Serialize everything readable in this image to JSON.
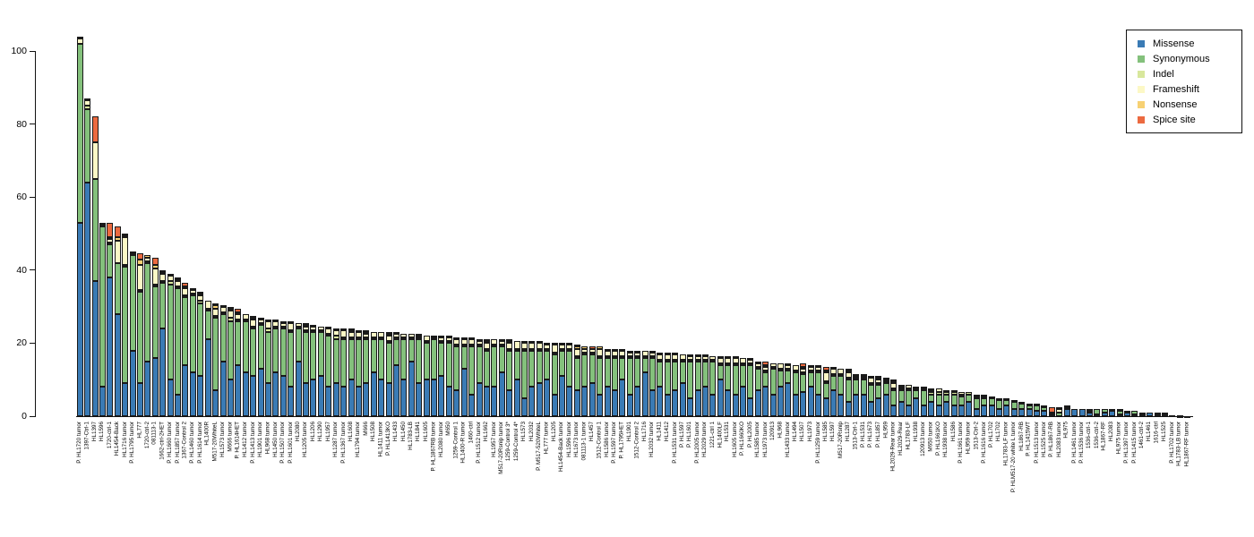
{
  "chart_data": {
    "type": "bar",
    "stacked": true,
    "title": "",
    "xlabel": "",
    "ylabel": "",
    "ylim": [
      0,
      104
    ],
    "y_ticks": [
      0,
      20,
      40,
      60,
      80,
      100
    ],
    "grid": false,
    "legend_position": "top-right",
    "categories": [
      "P. HL1720 tumor",
      "1397-Ctrl-1",
      "HL1397",
      "HL1596",
      "1720-ctrl-1",
      "HL1454-Back",
      "HL1716 tumor",
      "P. HL1795 tumor",
      "HL777",
      "1720-ctrl-2",
      "081113-1",
      "1662-ctrl-2HET",
      "P. HL1660 tumor",
      "P. HL1857 tumor",
      "1367-Control 2",
      "P. HL1460 tumor",
      "P. HL1614 tumor",
      "HL1400R",
      "M517-20WhiteL",
      "HL1573 tumor",
      "M666 tumor",
      "P. HL1614HET",
      "HL1412 tumor",
      "P. HL1413 tumor",
      "HL1901 tumor",
      "HL968 tumor",
      "HL1450 tumor",
      "P. HL1507 tumor",
      "P. HL1601 tumor",
      "HL2080",
      "HL1205 tumor",
      "HL1206",
      "HL1290",
      "HL1957",
      "HL1287 tumor",
      "P. HL1367 tumor",
      "HL1608",
      "HL1794 tumor",
      "M666",
      "HL1508",
      "HL1411 tumor",
      "P. HL1413KO",
      "HL1433",
      "HL1450",
      "HL1783-LB",
      "HL1841",
      "HL1605",
      "P. HL1867RB tumor",
      "HL2080 tumor",
      "M650",
      "1259-Control 1",
      "HL1400-R tumor",
      "1460-ctrl",
      "P. HL1512 tumor",
      "HL1662",
      "HL1957 tumor",
      "M517-20Rsnip tumor",
      "1259-Control 3*",
      "1259-Control 4*",
      "HL1573",
      "HL2032",
      "P. M517-520WhiteL",
      "HL777 tumor",
      "HL1205",
      "HL1454-Back tumor",
      "HL1596 tumor",
      "HL1673 tumor",
      "081113-1 tumor",
      "HL1457",
      "1512-Control 1",
      "HL1586 tumor",
      "P. HL1597 tumor",
      "P. HL1795HET",
      "HL1901",
      "1512-Control 2",
      "HL1716",
      "HL2032 tumor",
      "HL1411",
      "HL1412",
      "P. HL1531 tumor",
      "P. HL1597",
      "P. HL1601",
      "P. HL2005 tumor",
      "HL2029 tumor",
      "1221-ctrl 1",
      "HL1400LF",
      "HL1531",
      "HL1605 tumor",
      "P. HL1660KO",
      "P. HL2005",
      "HL1585 tumor",
      "HL1973 tumor",
      "120913",
      "HL968",
      "HL1433 tumor",
      "HL1494",
      "HL1507",
      "HL1973",
      "P. HL1259 tumor",
      "HL1585",
      "HL1597",
      "M517-20Rsnip",
      "HL1287",
      "1513-Ctrl-1",
      "P. HL1531",
      "P. HL1673",
      "P. HL1857",
      "HL959",
      "HL2029-Rear tumor",
      "HL2029-Rear",
      "HL1783-LF",
      "HL1938",
      "120913 tumor",
      "M650 tumor",
      "P. HL1661KO",
      "HL1938 tumor",
      "HL1586",
      "P. HL1661 tumor",
      "HL959 tumor",
      "1513-Ctrl-2",
      "P. HL1616 tumor",
      "P. HL1702",
      "HL1702",
      "HL1783-LF tumor",
      "P. HLM517-20 white L tumor",
      "HL1867-RB",
      "P. HL1415WT",
      "P. HL1513 tumor",
      "HL1525 tumor",
      "P. HL1867-RB",
      "HL2083 tumor",
      "HL975",
      "P. HL1461 tumor",
      "P. HL1536 tumor",
      "1536-ctrl-1",
      "1536-ctrl-2",
      "HL1867-RF",
      "HL2083",
      "HL975 tumor",
      "P. HL1397 tumor",
      "P. HL1415 tumor",
      "1461-ctrl-2",
      "HL1461",
      "1616-ctrl",
      "HL1525",
      "P. HL1702 tumor",
      "HL1783-LB tumor",
      "HL1867-RF tumor"
    ],
    "series": [
      {
        "name": "Missense",
        "color": "#3a7bb5",
        "values": [
          53,
          64,
          37,
          8,
          38,
          28,
          9,
          18,
          9,
          15,
          16,
          24,
          10,
          6,
          14,
          12,
          11,
          21,
          7,
          15,
          10,
          14,
          12,
          11,
          13,
          9,
          12,
          11,
          8,
          15,
          9,
          10,
          11,
          8,
          9,
          8,
          10,
          8,
          9,
          12,
          10,
          9,
          14,
          10,
          15,
          9,
          10,
          10,
          11,
          8,
          7,
          13,
          6,
          9,
          8,
          8,
          12,
          7,
          10,
          5,
          8,
          9,
          10,
          6,
          11,
          8,
          7,
          8,
          9,
          6,
          8,
          7,
          10,
          6,
          8,
          12,
          7,
          8,
          6,
          7,
          9,
          5,
          7,
          8,
          6,
          10,
          7,
          6,
          8,
          5,
          7,
          8,
          6,
          8,
          9,
          6,
          6.5,
          8,
          6,
          5,
          7,
          6,
          4,
          6,
          6,
          4,
          5,
          6,
          3,
          4,
          3,
          5,
          3,
          4,
          3,
          4,
          3,
          3,
          4,
          2,
          3,
          3,
          2,
          3,
          2,
          2,
          2,
          1.5,
          1.5,
          0,
          0,
          2,
          2,
          2,
          1,
          0.5,
          1,
          1.5,
          0.5,
          1,
          0.5,
          0.5,
          1,
          0.5,
          0.5,
          0.2,
          0.1,
          0.1
        ]
      },
      {
        "name": "Synonymous",
        "color": "#84c17c",
        "values": [
          49,
          20,
          28,
          44,
          9,
          14,
          32,
          26,
          25,
          27,
          19.5,
          12.5,
          26,
          29,
          18.5,
          21,
          20,
          8,
          20,
          13,
          16,
          12,
          14,
          13,
          12,
          14,
          12,
          13,
          15,
          9,
          14,
          13,
          12,
          14,
          12,
          13,
          11,
          13,
          12,
          9,
          11,
          11,
          7,
          11,
          6,
          12,
          10,
          11,
          9,
          12,
          12,
          6,
          13,
          10,
          10,
          11,
          7,
          11,
          8,
          13,
          10,
          9,
          8,
          11,
          7,
          10,
          9,
          9,
          8,
          10,
          8,
          9,
          6,
          10,
          8,
          4,
          9,
          7,
          9,
          8,
          6,
          10,
          8,
          7,
          9,
          4,
          7,
          8,
          6,
          9,
          6,
          4,
          7,
          4.5,
          3.5,
          6,
          5,
          4,
          6,
          4,
          4,
          5,
          6,
          4,
          4,
          4.5,
          3.5,
          3,
          4,
          3,
          4,
          2,
          4,
          2,
          3,
          2,
          3,
          2.5,
          2,
          3,
          2,
          2,
          2.5,
          1.5,
          2,
          1.5,
          1,
          1.5,
          1,
          0,
          1,
          0.5,
          0,
          0,
          0.5,
          1.5,
          1,
          0.5,
          1,
          0.5,
          1,
          0.5,
          0,
          0.5,
          0.5,
          0,
          0.1,
          0
        ]
      },
      {
        "name": "Indel",
        "color": "#d8e79c",
        "values": [
          0,
          1,
          0,
          0.5,
          0.5,
          0,
          0.5,
          0.5,
          0.5,
          0.5,
          0.5,
          0.5,
          1,
          0.5,
          0.5,
          0.5,
          0.5,
          0.5,
          0.5,
          0.5,
          1,
          0.5,
          0.5,
          0.5,
          0.5,
          1,
          0.5,
          0.5,
          0.5,
          0.5,
          0.5,
          0.5,
          0.5,
          0.5,
          1,
          0.5,
          0.5,
          0.5,
          0.5,
          0.5,
          0.5,
          0.5,
          0.5,
          0.5,
          0.5,
          0.5,
          0.5,
          0.5,
          0.5,
          0.5,
          0.5,
          0.5,
          0.5,
          0.5,
          0.5,
          0.5,
          0.5,
          0.5,
          0.5,
          0.5,
          0.5,
          0.5,
          0.5,
          0.5,
          0.5,
          0.5,
          0.5,
          0.5,
          0.5,
          0.5,
          0.5,
          0.5,
          0.5,
          0.5,
          0.5,
          0.5,
          0.5,
          0.5,
          0.5,
          0.5,
          0.5,
          0.5,
          0.5,
          0.5,
          0.5,
          0.5,
          0.5,
          0.5,
          0.5,
          0.5,
          0.5,
          0.5,
          0.5,
          0.5,
          0.5,
          0.5,
          0.5,
          0.5,
          0.5,
          0.5,
          0.5,
          0.5,
          0.5,
          0.5,
          0.5,
          0.5,
          0.5,
          0.5,
          0.5,
          0.5,
          0.5,
          0.5,
          0.5,
          0.5,
          0.5,
          0.5,
          0.5,
          0.5,
          0.5,
          0.5,
          0.5,
          0,
          0.5,
          0,
          0.5,
          0,
          0,
          0.5,
          0,
          0,
          0,
          0.5,
          0,
          0,
          0,
          0,
          0,
          0,
          0,
          0,
          0,
          0,
          0,
          0,
          0,
          0,
          0,
          0
        ]
      },
      {
        "name": "Frameshift",
        "color": "#fcf8c6",
        "values": [
          1.5,
          1.5,
          10,
          0.5,
          1,
          6,
          7.5,
          0.5,
          7,
          1,
          4.5,
          2,
          1.5,
          1.5,
          2,
          1,
          1.5,
          2,
          2,
          1.5,
          2,
          1.5,
          1.5,
          2,
          1,
          2,
          1.5,
          1,
          2,
          1,
          1,
          1,
          1,
          1.5,
          1.5,
          2,
          1.5,
          1.5,
          1,
          1.5,
          1.5,
          1.5,
          1,
          1,
          1,
          0.5,
          1.5,
          0.5,
          1,
          1,
          1.5,
          1.5,
          1.5,
          1,
          1.5,
          1.5,
          1,
          1.5,
          2,
          1.5,
          1.5,
          1.5,
          1,
          2,
          1,
          1,
          2,
          1,
          1,
          2,
          1.5,
          1.5,
          1.5,
          1,
          1,
          1.5,
          1,
          1.5,
          1.5,
          1.5,
          1.5,
          1,
          1,
          1,
          1,
          1.5,
          1.5,
          1.5,
          1.5,
          1,
          1,
          1,
          1,
          1.5,
          1,
          1.5,
          1,
          1,
          1,
          2.5,
          1.5,
          1.5,
          1.5,
          0.5,
          0.5,
          1.5,
          1,
          0.5,
          1.5,
          0.5,
          1,
          0.5,
          0.5,
          0.5,
          1,
          0.5,
          0.5,
          0.5,
          0,
          0.5,
          0,
          0.5,
          0,
          0,
          0,
          0.5,
          0.5,
          0,
          0.5,
          0.5,
          1,
          0,
          0,
          0,
          0,
          0,
          0,
          0,
          0.5,
          0,
          0,
          0,
          0,
          0,
          0,
          0,
          0,
          0
        ]
      },
      {
        "name": "Nonsense",
        "color": "#f7d173",
        "values": [
          0.5,
          0.5,
          0,
          0,
          0.5,
          1,
          0.5,
          0,
          1.5,
          0.5,
          1,
          0.5,
          0.5,
          0.5,
          0.5,
          0.5,
          0.5,
          0,
          1,
          0.5,
          0.5,
          0.5,
          0,
          0.5,
          0.5,
          0.5,
          0,
          0.5,
          0.5,
          0,
          0.5,
          0.5,
          0,
          0.5,
          0.5,
          0.5,
          0.5,
          0,
          0.5,
          0,
          0,
          0.5,
          0.5,
          0,
          0,
          0.5,
          0,
          0,
          0.5,
          0,
          0.5,
          0.5,
          0,
          0.5,
          0.5,
          0,
          0.5,
          0.5,
          0,
          0.5,
          0,
          0.5,
          0.5,
          0.5,
          0,
          0.5,
          0.5,
          0.5,
          0,
          0.5,
          0.5,
          0,
          0.5,
          0.5,
          0.5,
          0,
          0,
          0.5,
          0,
          0.5,
          0,
          0.5,
          0.5,
          0,
          0,
          0.5,
          0.5,
          0,
          0,
          0.5,
          0.5,
          0.5,
          0,
          0,
          0,
          0,
          0.5,
          0.5,
          0,
          0.5,
          0.5,
          0,
          0.5,
          0,
          0.5,
          0.5,
          0.5,
          0.5,
          0.5,
          0.5,
          0,
          0,
          0,
          0.5,
          0,
          0,
          0,
          0,
          0,
          0,
          0.5,
          0,
          0,
          0,
          0,
          0,
          0,
          0,
          0,
          0.5,
          0.5,
          0,
          0,
          0,
          0,
          0,
          0,
          0,
          0,
          0,
          0,
          0,
          0,
          0,
          0,
          0,
          0,
          0
        ]
      },
      {
        "name": "Spice site",
        "color": "#ec6a40",
        "values": [
          0,
          0,
          7,
          0,
          4,
          3,
          0.5,
          0,
          1.5,
          0,
          2,
          0.5,
          0,
          0.5,
          1,
          0,
          0.5,
          0,
          0.5,
          0,
          0.5,
          1,
          0,
          0.5,
          0,
          0,
          0.5,
          0,
          0,
          0,
          0.5,
          0,
          0,
          0,
          0,
          0,
          0.5,
          0.5,
          0.5,
          0,
          0,
          0.5,
          0,
          0,
          0,
          0,
          0,
          0,
          0,
          0.5,
          0,
          0,
          0.5,
          0,
          0.5,
          0,
          0,
          0.5,
          0,
          0,
          0.5,
          0,
          0,
          0,
          0.5,
          0,
          0.5,
          0,
          0.5,
          0,
          0,
          0.5,
          0,
          0,
          0,
          0,
          0.5,
          0,
          0.5,
          0,
          0,
          0,
          0,
          0.5,
          0,
          0,
          0,
          0.5,
          0,
          0,
          0,
          1,
          0,
          0,
          0.5,
          0,
          1,
          0,
          0.5,
          1,
          0,
          0,
          0.5,
          0.5,
          0,
          0,
          0.5,
          0,
          0.5,
          0,
          0,
          0,
          0,
          0,
          0,
          0,
          0,
          0,
          0,
          0,
          0,
          0,
          0,
          0.5,
          0,
          0,
          0,
          0,
          0,
          1.5,
          0,
          0,
          0,
          0,
          0.5,
          0,
          0,
          0,
          0,
          0,
          0,
          0,
          0,
          0,
          0,
          0,
          0,
          0
        ]
      }
    ]
  }
}
